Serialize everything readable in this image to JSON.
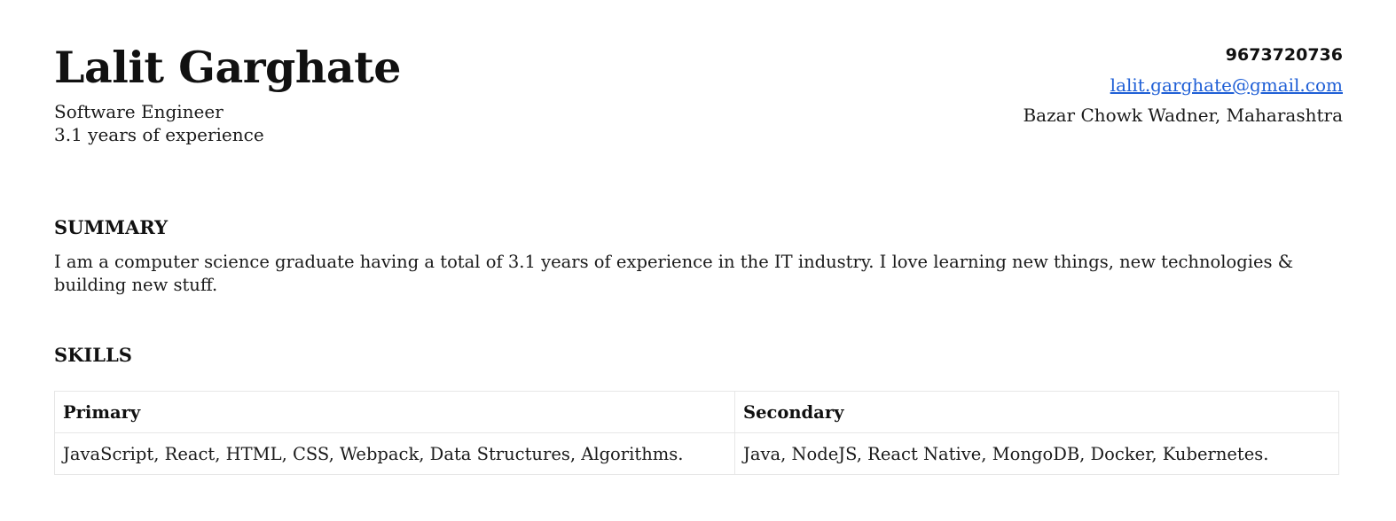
{
  "header": {
    "name": "Lalit Garghate",
    "role": "Software Engineer",
    "experience": "3.1 years of experience"
  },
  "contact": {
    "phone": "9673720736",
    "email": "lalit.garghate@gmail.com",
    "address": "Bazar Chowk Wadner, Maharashtra"
  },
  "summary": {
    "title": "SUMMARY",
    "text": "I am a computer science graduate having a total of 3.1 years of experience in the IT industry. I love learning new things, new technologies & building new stuff."
  },
  "skills": {
    "title": "SKILLS",
    "headers": [
      "Primary",
      "Secondary"
    ],
    "rows": [
      [
        "JavaScript, React, HTML, CSS, Webpack, Data Structures, Algorithms.",
        "Java, NodeJS, React Native, MongoDB, Docker, Kubernetes."
      ]
    ]
  }
}
